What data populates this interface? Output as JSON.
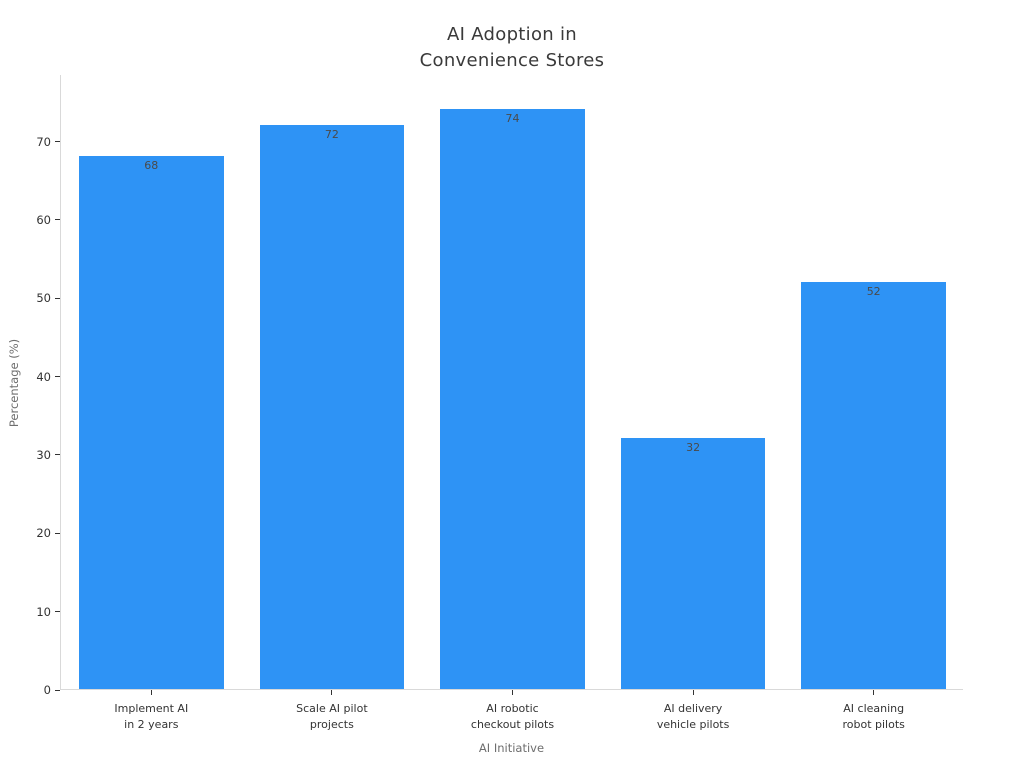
{
  "chart_data": {
    "type": "bar",
    "title": "AI Adoption in\nConvenience Stores",
    "xlabel": "AI Initiative",
    "ylabel": "Percentage (%)",
    "categories": [
      "Implement AI\nin 2 years",
      "Scale AI pilot\nprojects",
      "AI robotic\ncheckout pilots",
      "AI delivery\nvehicle pilots",
      "AI cleaning\nrobot pilots"
    ],
    "values": [
      68,
      72,
      74,
      32,
      52
    ],
    "yticks": [
      0,
      10,
      20,
      30,
      40,
      50,
      60,
      70
    ],
    "ylim": [
      0,
      78.5
    ],
    "bar_color": "#2e93f5",
    "value_label_color": "#4a4a4a",
    "tick_label_color": "#333333",
    "axis_label_color": "#6e6e6e",
    "grid": false,
    "legend_position": "none"
  }
}
